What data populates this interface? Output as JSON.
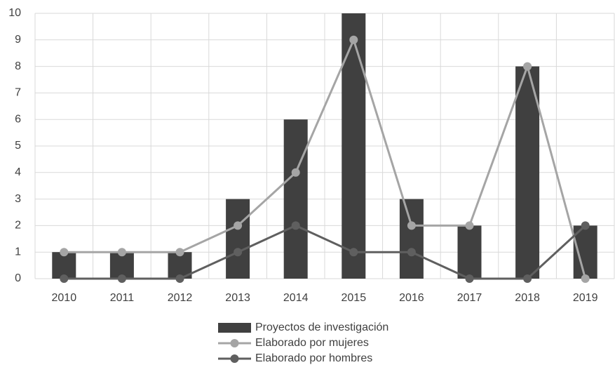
{
  "chart_data": {
    "type": "bar",
    "categories": [
      "2010",
      "2011",
      "2012",
      "2013",
      "2014",
      "2015",
      "2016",
      "2017",
      "2018",
      "2019"
    ],
    "series": [
      {
        "name": "Proyectos de investigación",
        "type": "bar",
        "color": "#404040",
        "values": [
          1,
          1,
          1,
          3,
          6,
          10,
          3,
          2,
          8,
          2
        ]
      },
      {
        "name": "Elaborado por mujeres",
        "type": "line",
        "color": "#a5a5a5",
        "values": [
          1,
          1,
          1,
          2,
          4,
          9,
          2,
          2,
          8,
          0
        ]
      },
      {
        "name": "Elaborado por hombres",
        "type": "line",
        "color": "#5f5f5f",
        "values": [
          0,
          0,
          0,
          1,
          2,
          1,
          1,
          0,
          0,
          2
        ]
      }
    ],
    "ylim": [
      0,
      10
    ],
    "yticks": [
      0,
      1,
      2,
      3,
      4,
      5,
      6,
      7,
      8,
      9,
      10
    ],
    "grid": true,
    "legend": "bottom"
  }
}
